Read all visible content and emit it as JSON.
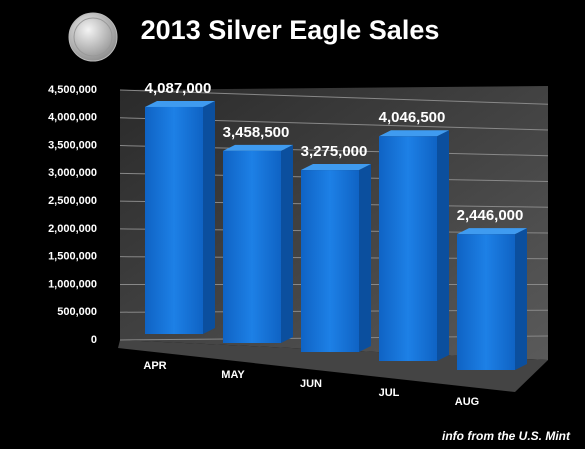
{
  "chart_data": {
    "type": "bar",
    "title": "2013 Silver Eagle Sales",
    "categories": [
      "APR",
      "MAY",
      "JUN",
      "JUL",
      "AUG"
    ],
    "values": [
      4087000,
      3458500,
      3275000,
      4046500,
      2446000
    ],
    "value_labels": [
      "4,087,000",
      "3,458,500",
      "3,275,000",
      "4,046,500",
      "2,446,000"
    ],
    "color": "#1674d6",
    "ylim": [
      0,
      4500000
    ],
    "yticks": [
      0,
      {
        "value": 500000,
        "label": "500,000"
      },
      {
        "value": 1000000,
        "label": "1,000,000"
      },
      {
        "value": 1500000,
        "label": "1,500,000"
      },
      {
        "value": 2000000,
        "label": "2,000,000"
      },
      {
        "value": 2500000,
        "label": "2,500,000"
      },
      {
        "value": 3000000,
        "label": "3,000,000"
      },
      {
        "value": 3500000,
        "label": "3,500,000"
      },
      {
        "value": 4000000,
        "label": "4,000,000"
      },
      {
        "value": 4500000,
        "label": "4,500,000"
      }
    ],
    "grid": true,
    "source": "info from the U.S. Mint"
  }
}
